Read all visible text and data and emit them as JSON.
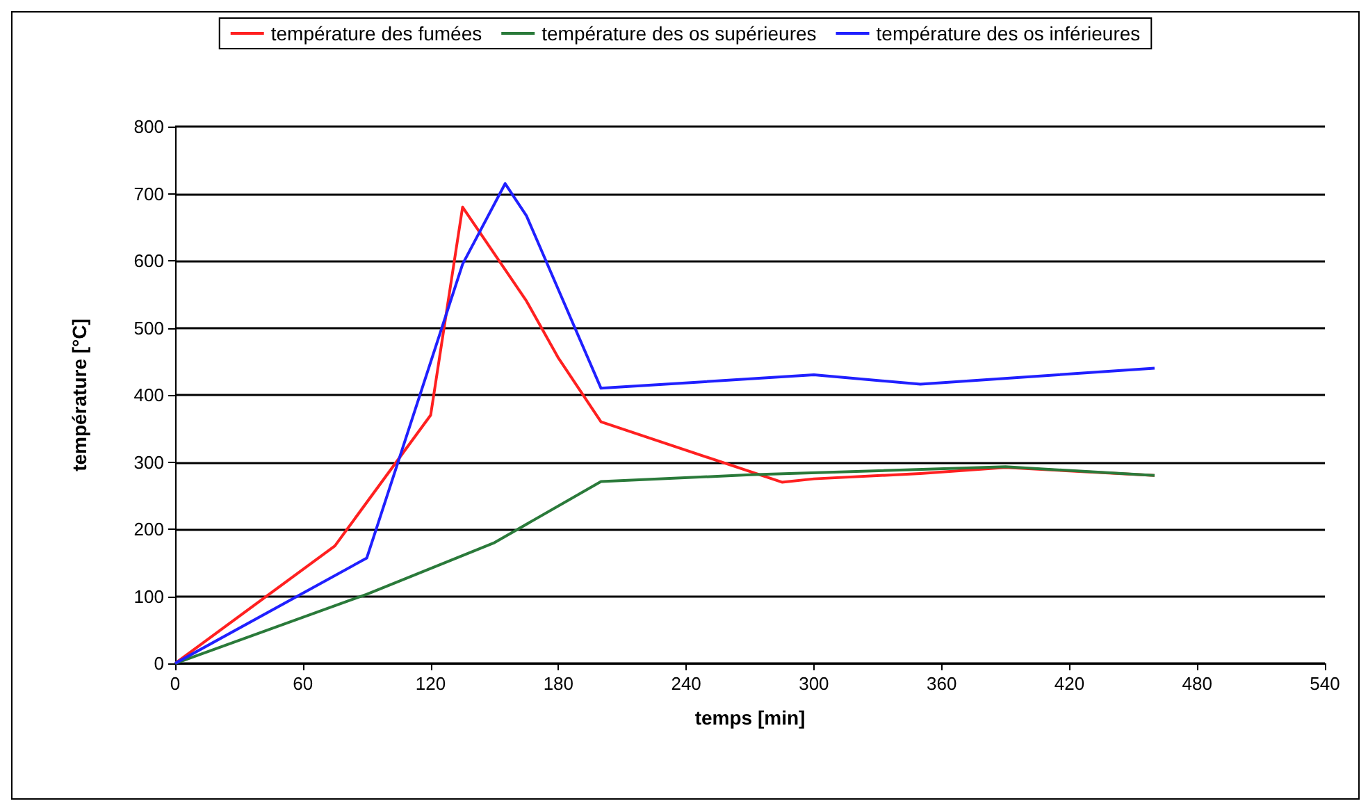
{
  "chart_data": {
    "type": "line",
    "xlabel": "temps [min]",
    "ylabel": "température [°C]",
    "xlim": [
      0,
      540
    ],
    "xticks": [
      0,
      60,
      120,
      180,
      240,
      300,
      360,
      420,
      480,
      540
    ],
    "ylim": [
      0,
      800
    ],
    "yticks": [
      0,
      100,
      200,
      300,
      400,
      500,
      600,
      700,
      800
    ],
    "grid": "y",
    "legend": "top",
    "marker": "none",
    "line_style": "solid",
    "series": [
      {
        "name": "température des fumées",
        "color": "#ff2020",
        "x": [
          0,
          75,
          120,
          135,
          165,
          180,
          200,
          285,
          300,
          350,
          390,
          460
        ],
        "values": [
          0,
          175,
          370,
          680,
          540,
          455,
          360,
          270,
          275,
          283,
          292,
          280
        ]
      },
      {
        "name": "température des os supérieures",
        "color": "#2a7a3a",
        "x": [
          0,
          90,
          150,
          200,
          270,
          390,
          460
        ],
        "values": [
          0,
          103,
          180,
          271,
          281,
          293,
          280
        ]
      },
      {
        "name": "température des os inférieures",
        "color": "#2020ff",
        "x": [
          0,
          90,
          135,
          155,
          165,
          200,
          300,
          350,
          460
        ],
        "values": [
          0,
          157,
          595,
          715,
          667,
          410,
          430,
          416,
          440
        ]
      }
    ]
  }
}
